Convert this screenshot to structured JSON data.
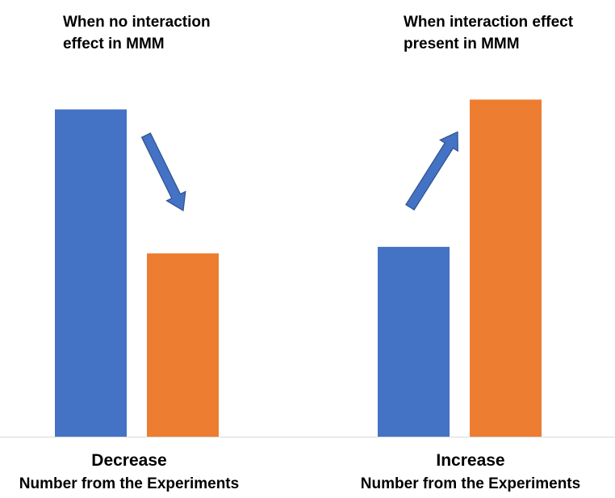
{
  "annotations": {
    "left": {
      "line1": "When no interaction",
      "line2": "effect in MMM"
    },
    "right": {
      "line1": "When interaction effect",
      "line2": "present in MMM"
    }
  },
  "chart_data": {
    "type": "bar",
    "categories": [
      "Decrease",
      "Increase"
    ],
    "category_subtitle": "Number from the Experiments",
    "series": [
      {
        "values": [
          100,
          58
        ],
        "color": "#4472C4"
      },
      {
        "values": [
          56,
          103
        ],
        "color": "#ED7D31"
      }
    ],
    "title": "",
    "xlabel": "",
    "ylabel": "",
    "ylim": [
      0,
      110
    ],
    "grid": false,
    "legend": "none",
    "arrows": [
      {
        "from_series": 0,
        "to_series": 1,
        "direction": "down",
        "category": 0
      },
      {
        "from_series": 0,
        "to_series": 1,
        "direction": "up",
        "category": 1
      }
    ],
    "axis_color": "#D9D9D9",
    "arrow_color": "#4472C4",
    "arrow_stroke": "#2F528F"
  }
}
